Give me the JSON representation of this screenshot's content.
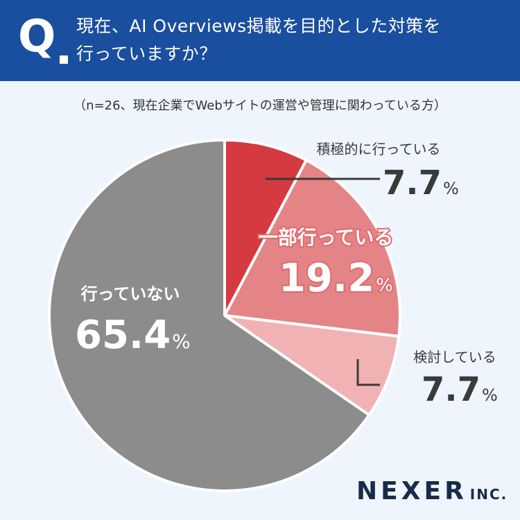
{
  "question": {
    "mark": "Q",
    "line1": "現在、AI Overviews掲載を目的とした対策を",
    "line2": "行っていますか？"
  },
  "note": "（n=26、現在企業でWebサイトの運営や管理に関わっている方）",
  "chart_data": {
    "type": "pie",
    "unit": "%",
    "start_angle_deg": 0,
    "direction": "clockwise",
    "slices": [
      {
        "label": "積極的に行っている",
        "value": 7.7,
        "color": "#d43a40"
      },
      {
        "label": "一部行っている",
        "value": 19.2,
        "color": "#e48486"
      },
      {
        "label": "検討している",
        "value": 7.7,
        "color": "#f1b2b3"
      },
      {
        "label": "行っていない",
        "value": 65.4,
        "color": "#8c8c8c"
      }
    ]
  },
  "logo": {
    "name": "NEXER",
    "suffix": "INC."
  }
}
